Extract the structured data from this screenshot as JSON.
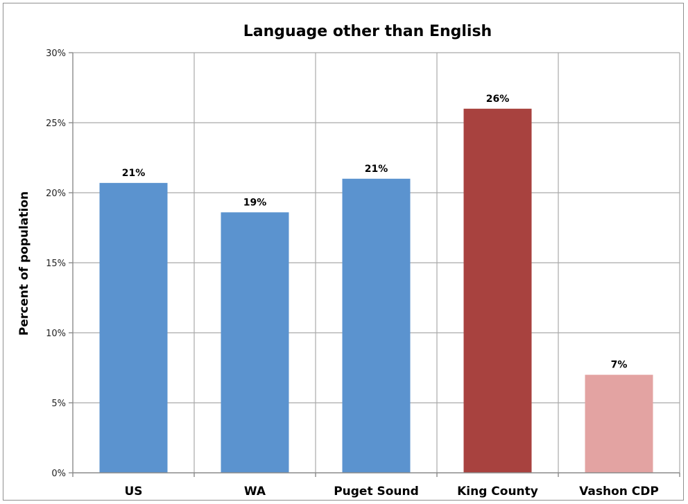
{
  "chart_data": {
    "type": "bar",
    "title": "Language other than English",
    "xlabel": "",
    "ylabel": "Percent of population",
    "categories": [
      "US",
      "WA",
      "Puget Sound",
      "King County",
      "Vashon CDP"
    ],
    "values": [
      20.7,
      18.6,
      21.0,
      26.0,
      7.0
    ],
    "data_labels": [
      "21%",
      "19%",
      "21%",
      "26%",
      "7%"
    ],
    "bar_colors": [
      "#5b93cf",
      "#5b93cf",
      "#5b93cf",
      "#a8423f",
      "#e3a3a2"
    ],
    "ylim": [
      0,
      30
    ],
    "yticks": [
      0,
      5,
      10,
      15,
      20,
      25,
      30
    ],
    "ytick_labels": [
      "0%",
      "5%",
      "10%",
      "15%",
      "20%",
      "25%",
      "30%"
    ],
    "grid": true,
    "legend": "none"
  }
}
